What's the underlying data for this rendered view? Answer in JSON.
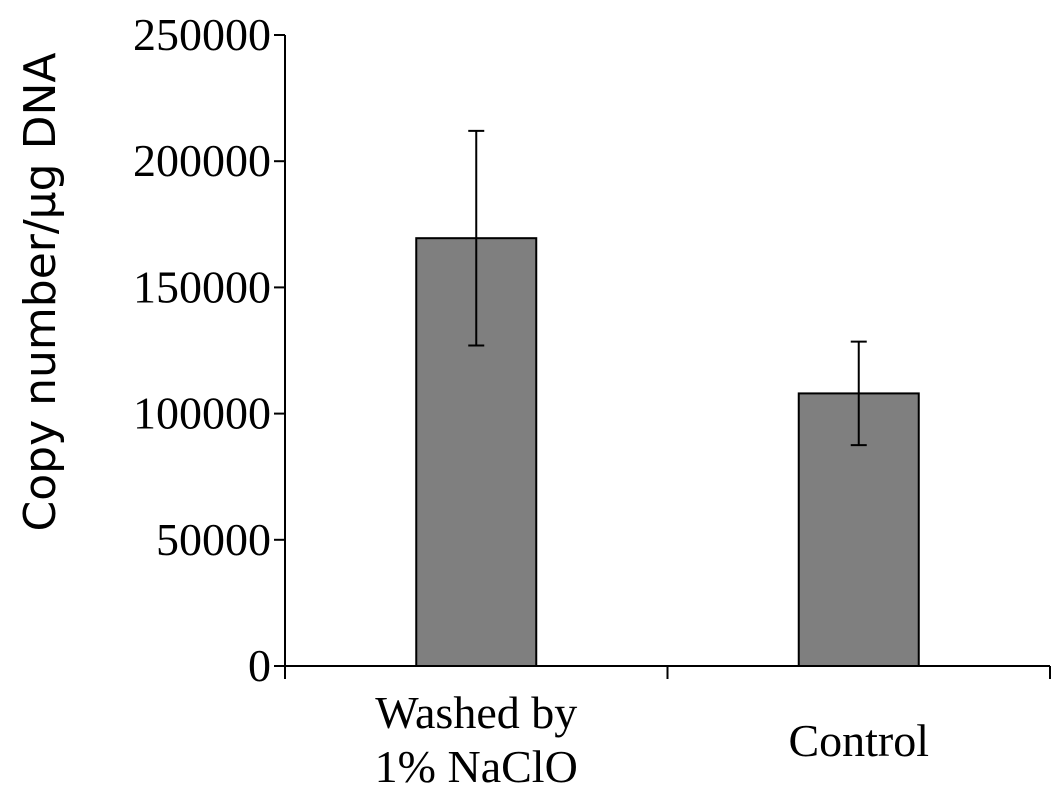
{
  "chart_data": {
    "type": "bar",
    "categories": [
      [
        "Washed by",
        "1% NaClO"
      ],
      [
        "Control"
      ]
    ],
    "series": [
      {
        "values": [
          169500,
          108000
        ],
        "error": [
          42500,
          20500
        ],
        "color": "#7f7f7f"
      }
    ],
    "title": "",
    "xlabel": "",
    "ylabel": "Copy number/µg DNA",
    "ylim": [
      0,
      250000
    ],
    "yticks": [
      0,
      50000,
      100000,
      150000,
      200000,
      250000
    ],
    "ytick_labels": [
      "0",
      "50000",
      "100000",
      "150000",
      "200000",
      "250000"
    ],
    "grid": false,
    "legend": "none"
  }
}
